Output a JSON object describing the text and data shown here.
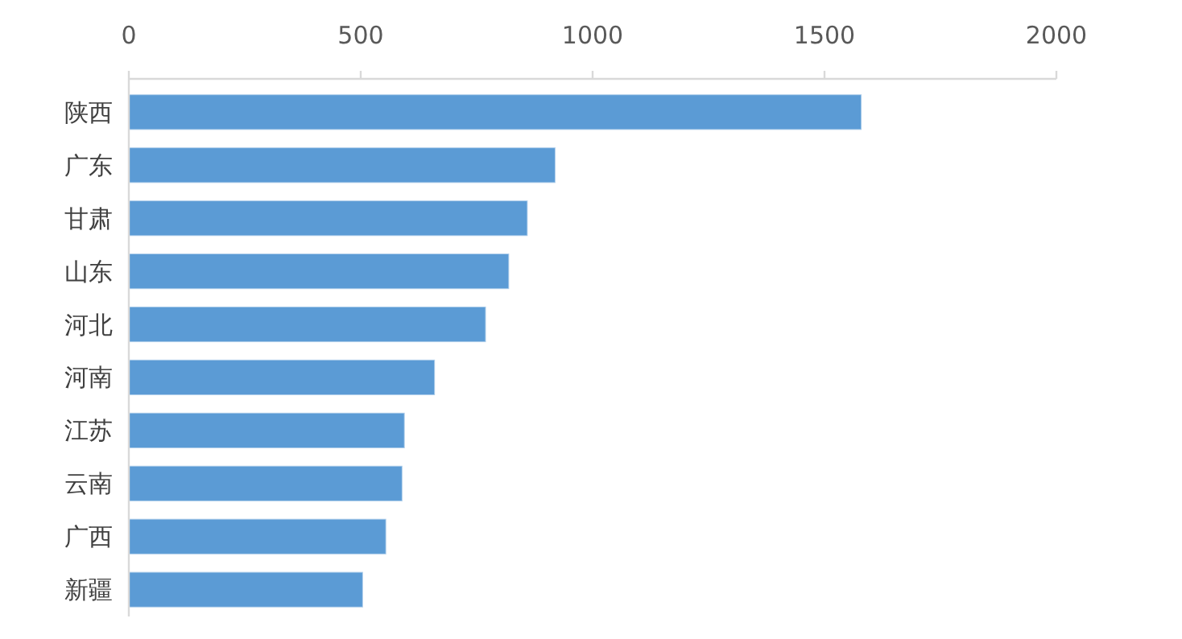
{
  "chart_data": {
    "type": "bar",
    "orientation": "horizontal",
    "categories": [
      "陕西",
      "广东",
      "甘肃",
      "山东",
      "河北",
      "河南",
      "江苏",
      "云南",
      "广西",
      "新疆"
    ],
    "values": [
      1580,
      920,
      860,
      820,
      770,
      660,
      595,
      590,
      555,
      505
    ],
    "color": "#5b9bd5",
    "xlim": [
      0,
      2000
    ],
    "xticks": [
      0,
      500,
      1000,
      1500,
      2000
    ],
    "grid": false
  }
}
